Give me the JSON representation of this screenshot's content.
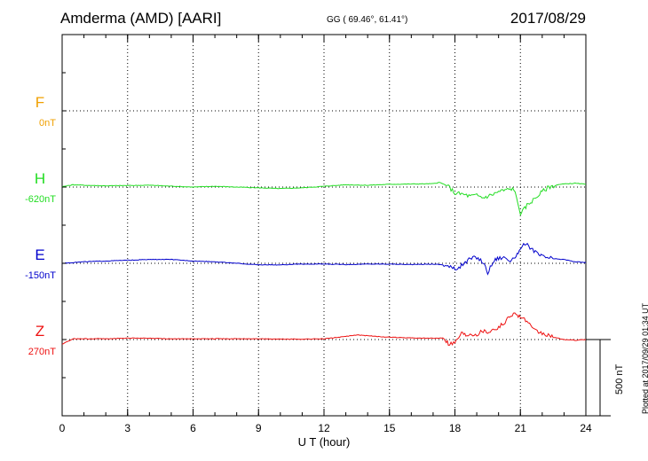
{
  "header": {
    "station": "Amderma (AMD)  [AARI]",
    "coords": "GG ( 69.46°,  61.41°)",
    "date": "2017/08/29"
  },
  "footer": {
    "plotted": "Plotted at 2017/09/29 01:34 UT",
    "scale": "500 nT"
  },
  "colors": {
    "F": "#f0a000",
    "H": "#22dd22",
    "E": "#0000cc",
    "Z": "#ee1111",
    "grid": "#000000"
  },
  "chart_data": {
    "type": "line",
    "xlabel": "U T (hour)",
    "xlim": [
      0,
      24
    ],
    "xticks": [
      "0",
      "3",
      "6",
      "9",
      "12",
      "15",
      "18",
      "21",
      "24"
    ],
    "scale_nT": 500,
    "grid": true,
    "series": [
      {
        "name": "F",
        "baseline_label": "0nT",
        "x": [],
        "y": []
      },
      {
        "name": "H",
        "baseline_label": "-620nT",
        "x": [
          0,
          0.5,
          1,
          2,
          3,
          4,
          5,
          6,
          7,
          8,
          9,
          10,
          11,
          12,
          12.5,
          13,
          14,
          15,
          16,
          17,
          17.3,
          17.7,
          18,
          18.3,
          18.7,
          19,
          19.3,
          19.7,
          20,
          20.3,
          20.7,
          21,
          21.1,
          21.3,
          21.7,
          22,
          22.3,
          22.7,
          23,
          23.5,
          24
        ],
        "y": [
          2,
          15,
          12,
          8,
          10,
          12,
          6,
          0,
          5,
          0,
          -5,
          -10,
          -5,
          5,
          10,
          15,
          12,
          18,
          20,
          22,
          30,
          5,
          -40,
          -45,
          -60,
          -55,
          -70,
          -50,
          -30,
          -20,
          -10,
          -170,
          -160,
          -120,
          -70,
          -30,
          0,
          15,
          20,
          25,
          18
        ]
      },
      {
        "name": "E",
        "baseline_label": "-150nT",
        "x": [
          0,
          1,
          2,
          3,
          4,
          5,
          6,
          7,
          8,
          9,
          10,
          11,
          12,
          13,
          14,
          15,
          16,
          17,
          17.5,
          17.8,
          18,
          18.3,
          18.7,
          19,
          19.3,
          19.5,
          19.8,
          20,
          20.3,
          20.6,
          20.8,
          21,
          21.2,
          21.5,
          21.8,
          22,
          22.5,
          23,
          23.5,
          24
        ],
        "y": [
          0,
          10,
          15,
          20,
          25,
          25,
          15,
          10,
          0,
          -10,
          -10,
          -5,
          -5,
          -8,
          -5,
          -5,
          -8,
          -5,
          -10,
          -25,
          -40,
          -15,
          30,
          40,
          5,
          -60,
          20,
          35,
          40,
          10,
          55,
          80,
          130,
          100,
          60,
          45,
          30,
          25,
          10,
          5
        ]
      },
      {
        "name": "Z",
        "baseline_label": "270nT",
        "x": [
          0,
          0.5,
          1,
          2,
          3,
          4,
          5,
          6,
          7,
          8,
          9,
          10,
          11,
          12,
          13,
          13.5,
          14,
          15,
          16,
          17,
          17.5,
          17.7,
          18,
          18.3,
          18.5,
          18.7,
          19,
          19.3,
          19.5,
          19.8,
          20,
          20.3,
          20.5,
          20.8,
          21,
          21.3,
          21.6,
          22,
          22.5,
          23,
          23.5,
          24
        ],
        "y": [
          -30,
          5,
          5,
          5,
          10,
          8,
          5,
          5,
          5,
          5,
          5,
          3,
          3,
          5,
          20,
          30,
          25,
          15,
          10,
          8,
          12,
          -25,
          -20,
          45,
          30,
          40,
          35,
          60,
          50,
          70,
          80,
          110,
          160,
          170,
          150,
          120,
          60,
          40,
          15,
          0,
          -5,
          0
        ]
      }
    ]
  }
}
